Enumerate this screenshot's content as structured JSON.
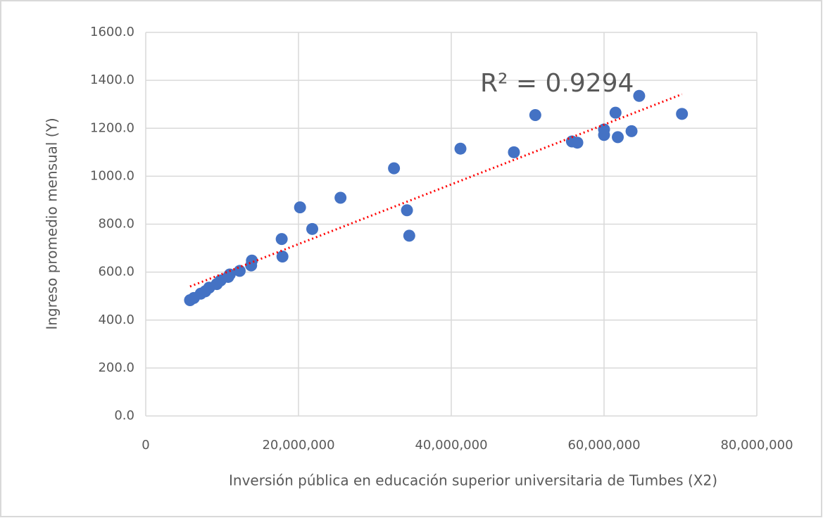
{
  "chart_data": {
    "type": "scatter",
    "xlabel": "Inversión pública en educación superior universitaria de Tumbes (X2)",
    "ylabel": "Ingreso promedio mensual (Y)",
    "annotation": "R² = 0.9294",
    "color": "#4472c4",
    "trendline": {
      "color": "#ff0000",
      "x": [
        5800000,
        70200000
      ],
      "y": [
        540,
        1342
      ]
    },
    "x": [
      5800000,
      6300000,
      7200000,
      7800000,
      8300000,
      9300000,
      9800000,
      10800000,
      11000000,
      12300000,
      13800000,
      13900000,
      17800000,
      17900000,
      20200000,
      21800000,
      25500000,
      32500000,
      34200000,
      34500000,
      41200000,
      48200000,
      51000000,
      55800000,
      56500000,
      60000000,
      60000000,
      61500000,
      61800000,
      63600000,
      64600000,
      70200000
    ],
    "values": [
      483,
      492,
      510,
      520,
      535,
      550,
      565,
      580,
      590,
      605,
      628,
      648,
      738,
      665,
      870,
      780,
      910,
      1033,
      858,
      752,
      1115,
      1100,
      1255,
      1145,
      1140,
      1195,
      1172,
      1265,
      1163,
      1188,
      1335,
      1260
    ],
    "xlim": [
      0,
      80000000
    ],
    "xticks": [
      0,
      {
        "value": 20000000,
        "label": "20,000,000"
      },
      {
        "value": 40000000,
        "label": "40,000,000"
      },
      {
        "value": 60000000,
        "label": "60,000,000"
      },
      {
        "value": 80000000,
        "label": "80,000,000"
      }
    ],
    "ylim": [
      0,
      1600
    ],
    "yticks": [
      {
        "value": 0,
        "label": "0.0"
      },
      {
        "value": 200,
        "label": "200.0"
      },
      {
        "value": 400,
        "label": "400.0"
      },
      {
        "value": 600,
        "label": "600.0"
      },
      {
        "value": 800,
        "label": "800.0"
      },
      {
        "value": 1000,
        "label": "1000.0"
      },
      {
        "value": 1200,
        "label": "1200.0"
      },
      {
        "value": 1400,
        "label": "1400.0"
      },
      {
        "value": 1600,
        "label": "1600.0"
      }
    ],
    "grid": true
  }
}
